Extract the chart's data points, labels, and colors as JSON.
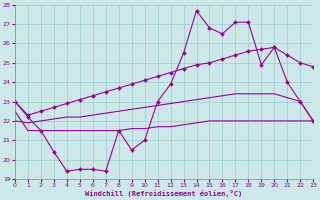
{
  "x": [
    0,
    1,
    2,
    3,
    4,
    5,
    6,
    7,
    8,
    9,
    10,
    11,
    12,
    13,
    14,
    15,
    16,
    17,
    18,
    19,
    20,
    21,
    22,
    23
  ],
  "curve_main": [
    23.0,
    22.2,
    21.5,
    20.4,
    19.4,
    19.5,
    19.5,
    19.4,
    21.5,
    20.5,
    21.0,
    23.0,
    23.9,
    25.5,
    27.7,
    26.8,
    26.5,
    27.1,
    27.1,
    24.9,
    25.8,
    24.0,
    23.0,
    22.0
  ],
  "curve_upper": [
    23.0,
    22.3,
    22.5,
    22.7,
    22.9,
    23.1,
    23.3,
    23.5,
    23.7,
    23.9,
    24.1,
    24.3,
    24.5,
    24.7,
    24.9,
    25.0,
    25.2,
    25.4,
    25.6,
    25.7,
    25.8,
    25.4,
    25.0,
    24.8
  ],
  "curve_mid": [
    22.0,
    21.9,
    22.0,
    22.1,
    22.2,
    22.2,
    22.3,
    22.4,
    22.5,
    22.6,
    22.7,
    22.8,
    22.9,
    23.0,
    23.1,
    23.2,
    23.3,
    23.4,
    23.4,
    23.4,
    23.4,
    23.2,
    23.0,
    22.0
  ],
  "curve_low": [
    22.5,
    21.5,
    21.5,
    21.5,
    21.5,
    21.5,
    21.5,
    21.5,
    21.5,
    21.6,
    21.6,
    21.7,
    21.7,
    21.8,
    21.9,
    22.0,
    22.0,
    22.0,
    22.0,
    22.0,
    22.0,
    22.0,
    22.0,
    22.0
  ],
  "line_color": "#990099",
  "bg_color": "#cce8e8",
  "grid_color": "#99cccc",
  "xlabel": "Windchill (Refroidissement éolien,°C)",
  "ylim": [
    19,
    28
  ],
  "xlim": [
    0,
    23
  ],
  "yticks": [
    19,
    20,
    21,
    22,
    23,
    24,
    25,
    26,
    27,
    28
  ],
  "xticks": [
    0,
    1,
    2,
    3,
    4,
    5,
    6,
    7,
    8,
    9,
    10,
    11,
    12,
    13,
    14,
    15,
    16,
    17,
    18,
    19,
    20,
    21,
    22,
    23
  ]
}
